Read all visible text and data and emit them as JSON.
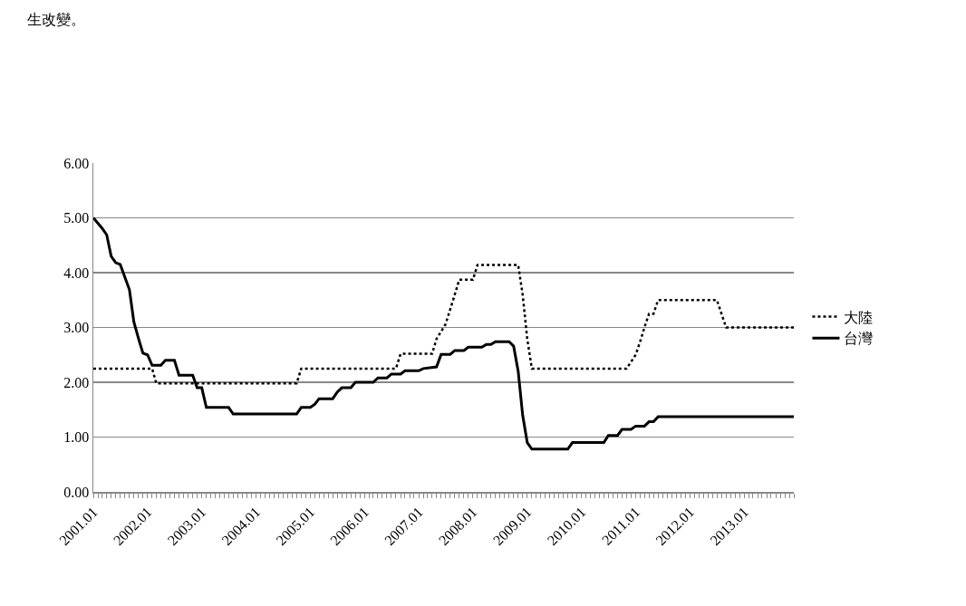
{
  "chart_data": {
    "type": "line",
    "annotations": [
      "生改變。"
    ],
    "xlim": [
      "2001-01",
      "2013-12"
    ],
    "xticks": [
      {
        "value": "2001-01",
        "label": "2001.01"
      },
      {
        "value": "2002-01",
        "label": "2002.01"
      },
      {
        "value": "2003-01",
        "label": "2003.01"
      },
      {
        "value": "2004-01",
        "label": "2004.01"
      },
      {
        "value": "2005-01",
        "label": "2005.01"
      },
      {
        "value": "2006-01",
        "label": "2006.01"
      },
      {
        "value": "2007-01",
        "label": "2007.01"
      },
      {
        "value": "2008-01",
        "label": "2008.01"
      },
      {
        "value": "2009-01",
        "label": "2009.01"
      },
      {
        "value": "2010-01",
        "label": "2010.01"
      },
      {
        "value": "2011-01",
        "label": "2011.01"
      },
      {
        "value": "2012-01",
        "label": "2012.01"
      },
      {
        "value": "2013-01",
        "label": "2013.01"
      }
    ],
    "ylim": [
      0,
      6
    ],
    "yticks": [
      {
        "value": 0,
        "label": "0.00"
      },
      {
        "value": 1,
        "label": "1.00"
      },
      {
        "value": 2,
        "label": "2.00"
      },
      {
        "value": 3,
        "label": "3.00"
      },
      {
        "value": 4,
        "label": "4.00"
      },
      {
        "value": 5,
        "label": "5.00"
      },
      {
        "value": 6,
        "label": "6.00"
      }
    ],
    "grid": "y",
    "legend": "right",
    "marker": "none",
    "series": [
      {
        "name": "大陸",
        "color": "#000000",
        "line_style": "dotted",
        "x": [
          "2001-01",
          "2002-02",
          "2002-03",
          "2004-10",
          "2004-11",
          "2006-08",
          "2006-09",
          "2007-04",
          "2007-05",
          "2007-07",
          "2007-08",
          "2007-09",
          "2007-10",
          "2008-01",
          "2008-02",
          "2008-11",
          "2008-12",
          "2009-01",
          "2009-02",
          "2010-11",
          "2011-01",
          "2011-02",
          "2011-03",
          "2011-04",
          "2011-05",
          "2011-06",
          "2012-07",
          "2012-08",
          "2012-09",
          "2013-12"
        ],
        "values": [
          2.25,
          2.25,
          1.98,
          1.98,
          2.25,
          2.25,
          2.52,
          2.52,
          2.79,
          3.06,
          3.33,
          3.6,
          3.87,
          3.87,
          4.14,
          4.14,
          3.6,
          2.79,
          2.25,
          2.25,
          2.5,
          2.75,
          3.0,
          3.25,
          3.25,
          3.5,
          3.5,
          3.25,
          3.0,
          3.0
        ]
      },
      {
        "name": "台灣",
        "color": "#000000",
        "line_style": "solid",
        "x": [
          "2001-01",
          "2001-03",
          "2001-04",
          "2001-05",
          "2001-06",
          "2001-07",
          "2001-09",
          "2001-10",
          "2001-11",
          "2001-12",
          "2002-01",
          "2002-02",
          "2002-04",
          "2002-05",
          "2002-07",
          "2002-08",
          "2002-11",
          "2002-12",
          "2003-01",
          "2003-02",
          "2003-07",
          "2003-08",
          "2004-10",
          "2004-11",
          "2005-01",
          "2005-02",
          "2005-03",
          "2005-06",
          "2005-07",
          "2005-08",
          "2005-10",
          "2005-11",
          "2006-03",
          "2006-04",
          "2006-06",
          "2006-07",
          "2006-09",
          "2006-10",
          "2007-01",
          "2007-02",
          "2007-05",
          "2007-06",
          "2007-08",
          "2007-09",
          "2007-11",
          "2007-12",
          "2008-03",
          "2008-04",
          "2008-05",
          "2008-06",
          "2008-09",
          "2008-10",
          "2008-11",
          "2008-12",
          "2009-01",
          "2009-02",
          "2009-10",
          "2009-11",
          "2010-06",
          "2010-07",
          "2010-09",
          "2010-10",
          "2010-12",
          "2011-01",
          "2011-03",
          "2011-04",
          "2011-05",
          "2011-06",
          "2013-12"
        ],
        "values": [
          5.0,
          4.81,
          4.69,
          4.3,
          4.18,
          4.15,
          3.69,
          3.1,
          2.8,
          2.53,
          2.5,
          2.31,
          2.31,
          2.4,
          2.4,
          2.13,
          2.13,
          1.9,
          1.9,
          1.54,
          1.54,
          1.42,
          1.42,
          1.54,
          1.54,
          1.6,
          1.7,
          1.7,
          1.82,
          1.9,
          1.9,
          2.0,
          2.0,
          2.08,
          2.08,
          2.15,
          2.15,
          2.21,
          2.21,
          2.25,
          2.28,
          2.51,
          2.51,
          2.58,
          2.58,
          2.64,
          2.64,
          2.69,
          2.69,
          2.74,
          2.74,
          2.66,
          2.2,
          1.4,
          0.9,
          0.78,
          0.78,
          0.9,
          0.9,
          1.03,
          1.03,
          1.14,
          1.14,
          1.2,
          1.2,
          1.28,
          1.28,
          1.37,
          1.37
        ]
      }
    ]
  }
}
